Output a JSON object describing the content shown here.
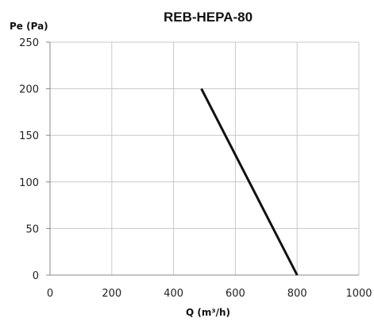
{
  "chart_data": {
    "type": "line",
    "title": "REB-HEPA-80",
    "xlabel": "Q (m³/h)",
    "ylabel": "Pe (Pa)",
    "xlim": [
      0,
      1000
    ],
    "ylim": [
      0,
      250
    ],
    "x_ticks": [
      "0",
      "200",
      "400",
      "600",
      "800",
      "1000"
    ],
    "y_ticks": [
      "0",
      "50",
      "100",
      "150",
      "200",
      "250"
    ],
    "grid": true,
    "series": [
      {
        "x": [
          490,
          800
        ],
        "y": [
          200,
          0
        ],
        "color": "#111111"
      }
    ]
  }
}
